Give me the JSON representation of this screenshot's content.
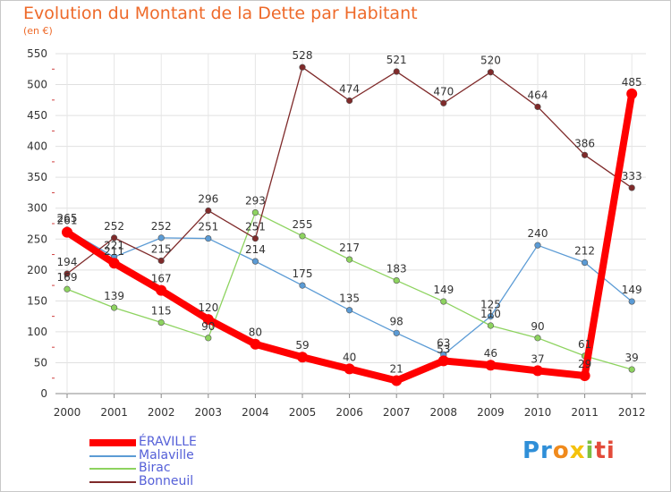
{
  "chart_data": {
    "type": "line",
    "title": "Evolution du Montant de la Dette par Habitant",
    "subtitle": "(en €)",
    "x": [
      "2000",
      "2001",
      "2002",
      "2003",
      "2004",
      "2005",
      "2006",
      "2007",
      "2008",
      "2009",
      "2010",
      "2011",
      "2012"
    ],
    "yticks": [
      0,
      50,
      100,
      150,
      200,
      250,
      300,
      350,
      400,
      450,
      500,
      550
    ],
    "ylim": [
      0,
      550
    ],
    "grid": true,
    "legend_position": "bottom-left",
    "series": [
      {
        "name": "ÉRAVILLE",
        "color": "#ff0000",
        "values": [
          261,
          211,
          167,
          120,
          80,
          59,
          40,
          21,
          53,
          46,
          37,
          29,
          485
        ]
      },
      {
        "name": "Malaville",
        "color": "#5b9bd5",
        "values": [
          265,
          221,
          252,
          251,
          214,
          175,
          135,
          98,
          63,
          125,
          240,
          212,
          149
        ]
      },
      {
        "name": "Birac",
        "color": "#8dd35f",
        "values": [
          169,
          139,
          115,
          90,
          293,
          255,
          217,
          183,
          149,
          110,
          90,
          61,
          39
        ]
      },
      {
        "name": "Bonneuil",
        "color": "#7f2a2a",
        "values": [
          194,
          252,
          215,
          296,
          251,
          528,
          474,
          521,
          470,
          520,
          464,
          386,
          333
        ]
      }
    ]
  },
  "logo": {
    "text": [
      "Pr",
      "o",
      "x",
      "i",
      "ti"
    ]
  }
}
